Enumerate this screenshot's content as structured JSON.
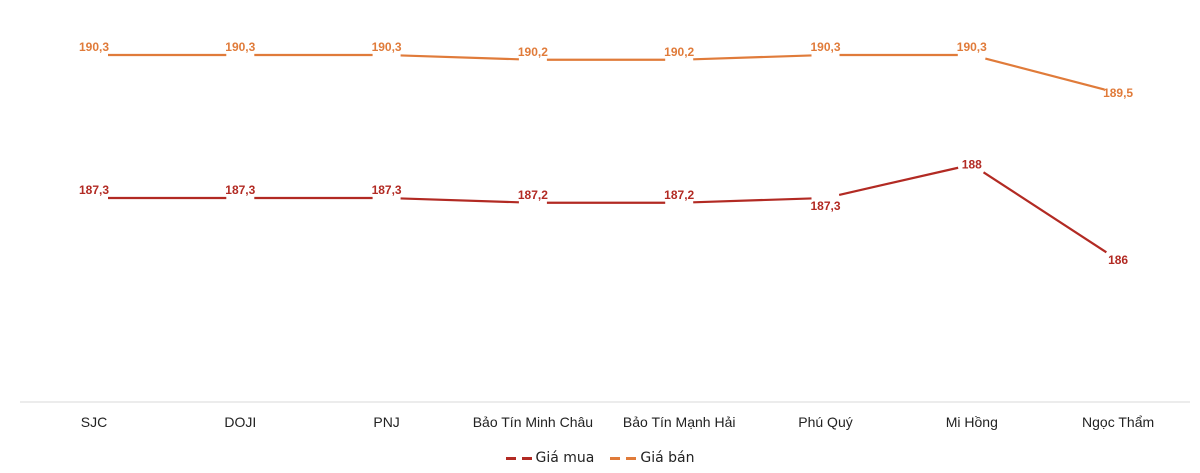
{
  "chart_data": {
    "type": "line",
    "title": "",
    "xlabel": "",
    "ylabel": "",
    "categories": [
      "SJC",
      "DOJI",
      "PNJ",
      "Bảo Tín Minh Châu",
      "Bảo Tín Mạnh Hải",
      "Phú Quý",
      "Mi Hồng",
      "Ngọc Thẩm"
    ],
    "series": [
      {
        "name": "Giá mua",
        "color": "#b22a23",
        "values": [
          187.3,
          187.3,
          187.3,
          187.2,
          187.2,
          187.3,
          188,
          186
        ],
        "labels": [
          "187,3",
          "187,3",
          "187,3",
          "187,2",
          "187,2",
          "187,3",
          "188",
          "186"
        ]
      },
      {
        "name": "Giá bán",
        "color": "#e07b3a",
        "values": [
          190.3,
          190.3,
          190.3,
          190.2,
          190.2,
          190.3,
          190.3,
          189.5
        ],
        "labels": [
          "190,3",
          "190,3",
          "190,3",
          "190,2",
          "190,2",
          "190,3",
          "190,3",
          "189,5"
        ]
      }
    ],
    "grid": false,
    "legend_position": "bottom",
    "yaxis_visible": false
  },
  "legend": {
    "buy_label": "Giá mua",
    "sell_label": "Giá bán"
  }
}
